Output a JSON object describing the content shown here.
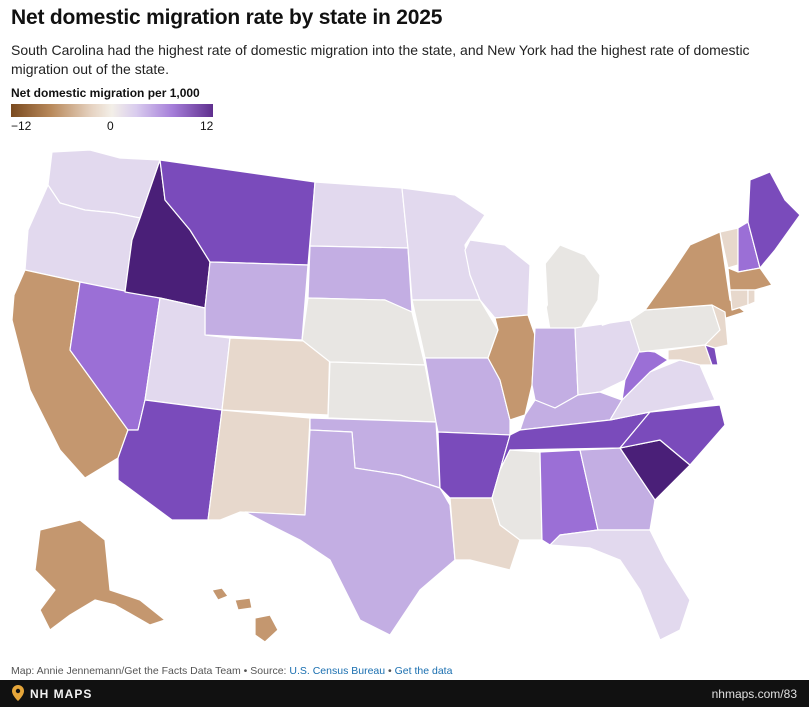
{
  "title": "Net domestic migration rate by state in 2025",
  "subtitle": "South Carolina had the highest rate of domestic migration into the state, and New York had the highest rate of domestic migration out of the state.",
  "legend": {
    "title": "Net domestic migration per 1,000",
    "min_label": "−12",
    "mid_label": "0",
    "max_label": "12"
  },
  "colors": {
    "out_strong": "#7a4a1f",
    "out_mid": "#c4976f",
    "out_light": "#e7d8cc",
    "neutral": "#e8e6e3",
    "in_light": "#e2d9ee",
    "in_mid": "#c3aee3",
    "in_strong": "#9b6fd6",
    "in_stronger": "#7a4bbb",
    "in_strongest": "#4a1f78"
  },
  "credits": {
    "text": "Map: Annie Jennemann/Get the Facts Data Team • Source: ",
    "source_link": "U.S. Census Bureau",
    "separator": " • ",
    "data_link": "Get the data"
  },
  "footer": {
    "brand": "NH MAPS",
    "url": "nhmaps.com/83"
  }
}
